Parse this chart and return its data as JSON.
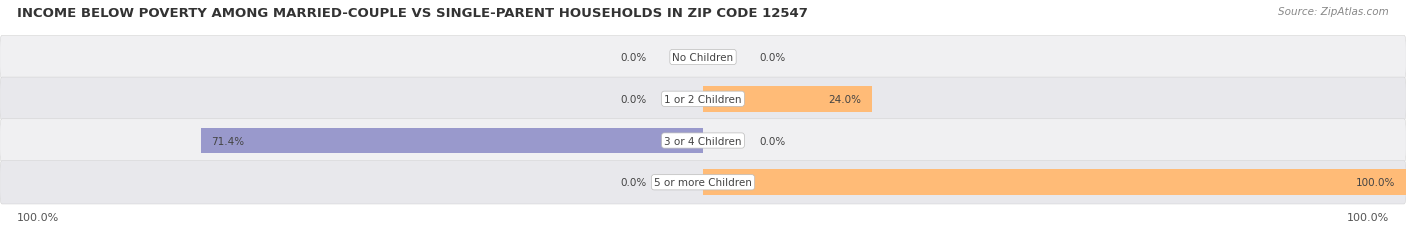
{
  "title": "INCOME BELOW POVERTY AMONG MARRIED-COUPLE VS SINGLE-PARENT HOUSEHOLDS IN ZIP CODE 12547",
  "source": "Source: ZipAtlas.com",
  "categories": [
    "No Children",
    "1 or 2 Children",
    "3 or 4 Children",
    "5 or more Children"
  ],
  "married_values": [
    0.0,
    0.0,
    71.4,
    0.0
  ],
  "single_values": [
    0.0,
    24.0,
    0.0,
    100.0
  ],
  "married_color": "#9999cc",
  "single_color": "#ffbb77",
  "max_value": 100.0,
  "bar_height": 0.62,
  "title_fontsize": 9.5,
  "source_fontsize": 7.5,
  "label_fontsize": 7.5,
  "val_fontsize": 7.5,
  "axis_label_left": "100.0%",
  "axis_label_right": "100.0%",
  "row_colors": [
    "#f0f0f2",
    "#e8e8ec",
    "#f0f0f2",
    "#e8e8ec"
  ],
  "center_label_color": "#444444",
  "value_label_color": "#444444",
  "title_color": "#333333",
  "source_color": "#888888"
}
